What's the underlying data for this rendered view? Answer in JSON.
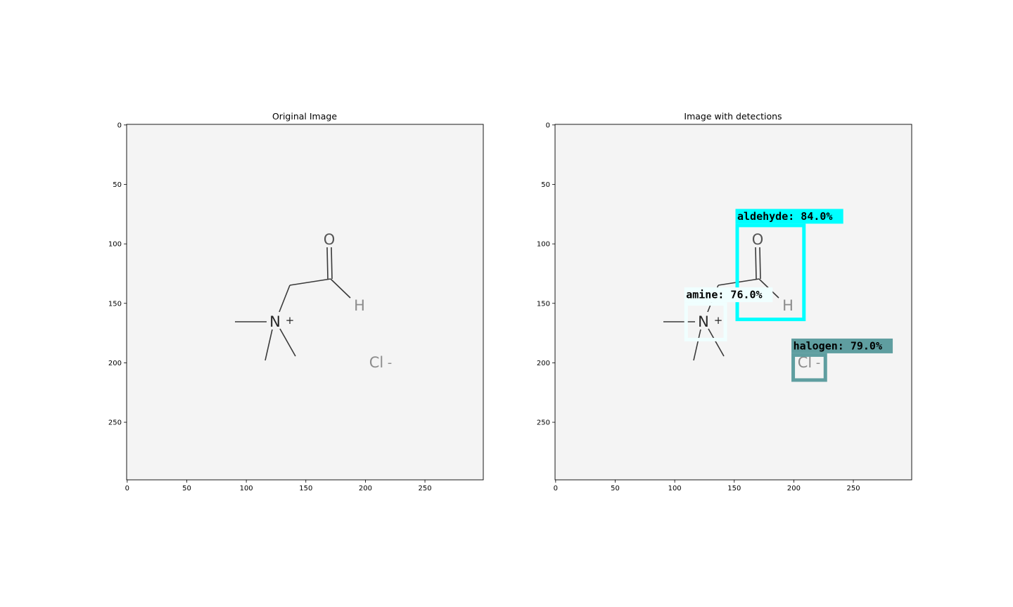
{
  "panels": [
    {
      "id": "original",
      "title": "Original Image",
      "detections": []
    },
    {
      "id": "detections",
      "title": "Image with detections",
      "detections": [
        {
          "label": "aldehyde:  84.0%",
          "class": "aldehyde",
          "score": 84.0,
          "color": "#00ffff",
          "box": {
            "x0": 153,
            "y0": 85,
            "x1": 209,
            "y1": 164
          }
        },
        {
          "label": "amine:  76.0%",
          "class": "amine",
          "score": 76.0,
          "color": "#f0ffff",
          "box": {
            "x0": 110,
            "y0": 151,
            "x1": 143,
            "y1": 181
          }
        },
        {
          "label": "halogen:  79.0%",
          "class": "halogen",
          "score": 79.0,
          "color": "#5f9ea0",
          "box": {
            "x0": 200,
            "y0": 194,
            "x1": 227,
            "y1": 215
          }
        }
      ]
    }
  ],
  "axes": {
    "x_ticks": [
      "0",
      "50",
      "100",
      "150",
      "200",
      "250"
    ],
    "y_ticks": [
      "0",
      "50",
      "100",
      "150",
      "200",
      "250"
    ],
    "xlim": [
      0,
      299
    ],
    "ylim": [
      299,
      0
    ]
  },
  "molecule": {
    "atoms": {
      "oxygen": "O",
      "hydrogen": "H",
      "nitrogen": "N",
      "nitrogen_charge": "+",
      "chlorine": "Cl",
      "chlorine_charge": "-"
    }
  }
}
